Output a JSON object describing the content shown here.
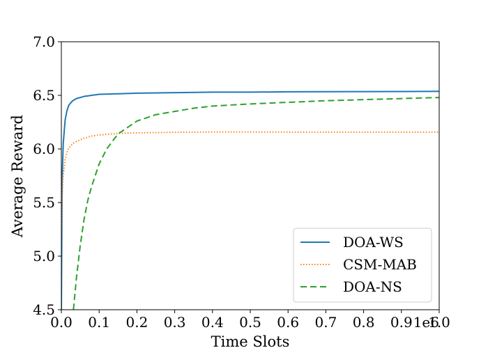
{
  "chart_data": {
    "type": "line",
    "title": "",
    "xlabel": "Time Slots",
    "ylabel": "Average Reward",
    "x_offset_label": "1e6",
    "xlim": [
      0.0,
      1.0
    ],
    "ylim": [
      4.5,
      7.0
    ],
    "x_ticks": [
      0.0,
      0.1,
      0.2,
      0.3,
      0.4,
      0.5,
      0.6,
      0.7,
      0.8,
      0.9,
      1.0
    ],
    "x_tick_labels": [
      "0.0",
      "0.1",
      "0.2",
      "0.3",
      "0.4",
      "0.5",
      "0.6",
      "0.7",
      "0.8",
      "0.9",
      "1.0"
    ],
    "y_ticks": [
      4.5,
      5.0,
      5.5,
      6.0,
      6.5,
      7.0
    ],
    "y_tick_labels": [
      "4.5",
      "5.0",
      "5.5",
      "6.0",
      "6.5",
      "7.0"
    ],
    "grid": false,
    "legend_position": "lower-right",
    "series": [
      {
        "name": "DOA-WS",
        "color": "#1f77b4",
        "style": "solid",
        "x": [
          0.0,
          0.002,
          0.005,
          0.01,
          0.015,
          0.02,
          0.03,
          0.04,
          0.06,
          0.08,
          0.1,
          0.15,
          0.2,
          0.3,
          0.4,
          0.5,
          0.6,
          0.7,
          0.8,
          0.9,
          1.0
        ],
        "y": [
          4.5,
          5.7,
          6.05,
          6.27,
          6.36,
          6.41,
          6.45,
          6.47,
          6.49,
          6.5,
          6.51,
          6.515,
          6.52,
          6.525,
          6.53,
          6.53,
          6.533,
          6.534,
          6.535,
          6.536,
          6.537
        ]
      },
      {
        "name": "CSM-MAB",
        "color": "#ff7f0e",
        "style": "dotted",
        "x": [
          0.0,
          0.002,
          0.005,
          0.01,
          0.015,
          0.02,
          0.03,
          0.04,
          0.06,
          0.08,
          0.1,
          0.15,
          0.2,
          0.3,
          0.4,
          0.5,
          0.6,
          0.7,
          0.8,
          0.9,
          1.0
        ],
        "y": [
          5.22,
          5.55,
          5.75,
          5.9,
          5.97,
          6.01,
          6.05,
          6.07,
          6.1,
          6.12,
          6.13,
          6.145,
          6.15,
          6.155,
          6.158,
          6.158,
          6.157,
          6.157,
          6.157,
          6.157,
          6.157
        ]
      },
      {
        "name": "DOA-NS",
        "color": "#2ca02c",
        "style": "dashed",
        "x": [
          0.032,
          0.04,
          0.05,
          0.06,
          0.07,
          0.08,
          0.1,
          0.12,
          0.15,
          0.2,
          0.25,
          0.3,
          0.35,
          0.4,
          0.5,
          0.6,
          0.7,
          0.8,
          0.9,
          1.0
        ],
        "y": [
          4.5,
          4.8,
          5.1,
          5.34,
          5.52,
          5.65,
          5.86,
          6.0,
          6.14,
          6.26,
          6.32,
          6.35,
          6.38,
          6.4,
          6.42,
          6.435,
          6.45,
          6.46,
          6.47,
          6.48
        ]
      }
    ]
  }
}
